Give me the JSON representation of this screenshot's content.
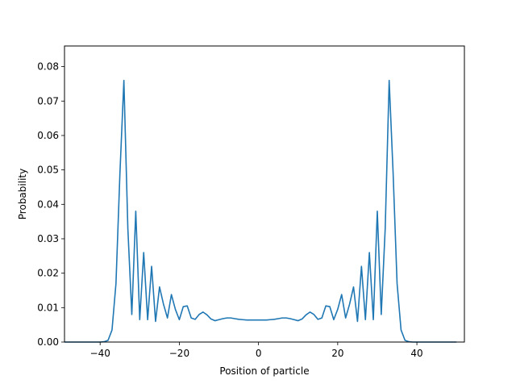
{
  "chart_data": {
    "type": "line",
    "title": "",
    "xlabel": "Position of particle",
    "ylabel": "Probability",
    "xlim": [
      -49,
      52
    ],
    "ylim": [
      0,
      0.086
    ],
    "grid": false,
    "legend": "none",
    "xticks": [
      -40,
      -20,
      0,
      20,
      40
    ],
    "xtick_labels": [
      "−40",
      "−20",
      "0",
      "20",
      "40"
    ],
    "yticks": [
      0.0,
      0.01,
      0.02,
      0.03,
      0.04,
      0.05,
      0.06,
      0.07,
      0.08
    ],
    "ytick_labels": [
      "0.00",
      "0.01",
      "0.02",
      "0.03",
      "0.04",
      "0.05",
      "0.06",
      "0.07",
      "0.08"
    ],
    "line_color": "#1f77b4",
    "series": [
      {
        "x": [
          -49,
          -48,
          -47,
          -46,
          -45,
          -44,
          -43,
          -42,
          -41,
          -40,
          -39,
          -38,
          -37,
          -36,
          -35,
          -34,
          -33,
          -32,
          -31,
          -30,
          -29,
          -28,
          -27,
          -26,
          -25,
          -24,
          -23,
          -22,
          -21,
          -20,
          -19,
          -18,
          -17,
          -16,
          -15,
          -14,
          -13,
          -12,
          -11,
          -10,
          -9,
          -8,
          -7,
          -6,
          -5,
          -4,
          -3,
          -2,
          -1,
          0,
          1,
          2,
          3,
          4,
          5,
          6,
          7,
          8,
          9,
          10,
          11,
          12,
          13,
          14,
          15,
          16,
          17,
          18,
          19,
          20,
          21,
          22,
          23,
          24,
          25,
          26,
          27,
          28,
          29,
          30,
          31,
          32,
          33,
          34,
          35,
          36,
          37,
          38,
          39,
          40,
          41,
          42,
          43,
          44,
          45,
          46,
          47,
          48,
          49,
          50
        ],
        "y": [
          0,
          0,
          0,
          0,
          0,
          0,
          0,
          0,
          0,
          0,
          0.0001,
          0.0005,
          0.0035,
          0.017,
          0.049,
          0.076,
          0.033,
          0.008,
          0.038,
          0.0065,
          0.026,
          0.0065,
          0.022,
          0.006,
          0.016,
          0.011,
          0.007,
          0.0138,
          0.0095,
          0.0065,
          0.0103,
          0.0105,
          0.007,
          0.0066,
          0.008,
          0.0087,
          0.0079,
          0.0067,
          0.0062,
          0.0065,
          0.0068,
          0.007,
          0.007,
          0.0068,
          0.0066,
          0.0065,
          0.0064,
          0.0064,
          0.0064,
          0.0064,
          0.0064,
          0.0064,
          0.0065,
          0.0066,
          0.0068,
          0.007,
          0.007,
          0.0068,
          0.0065,
          0.0062,
          0.0067,
          0.0079,
          0.0087,
          0.008,
          0.0066,
          0.007,
          0.0105,
          0.0103,
          0.0065,
          0.0095,
          0.0138,
          0.007,
          0.011,
          0.016,
          0.006,
          0.022,
          0.0065,
          0.026,
          0.0065,
          0.038,
          0.008,
          0.033,
          0.076,
          0.049,
          0.017,
          0.0035,
          0.0005,
          0.0001,
          0,
          0,
          0,
          0,
          0,
          0,
          0,
          0,
          0,
          0,
          0,
          0
        ]
      }
    ]
  }
}
